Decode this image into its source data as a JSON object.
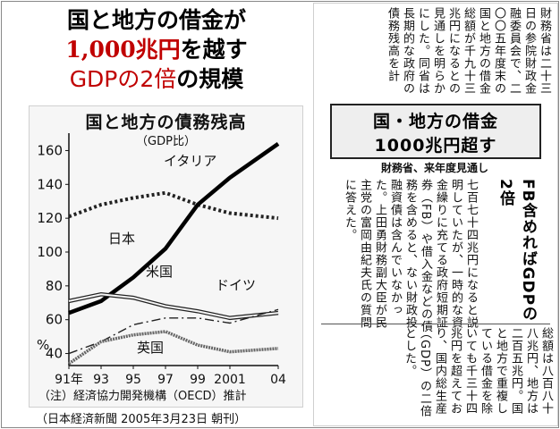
{
  "headline": {
    "line1": "国と地方の借金が",
    "line2_red": "1,000兆円",
    "line2_rest": "を越す",
    "line3_red": "GDPの2倍",
    "line3_rest": "の規模"
  },
  "chart_meta": {
    "title": "国と地方の債務残高",
    "subtitle": "（GDP比）",
    "note": "（注）経済協力開発機構（OECD）推計",
    "percent_mark": "%"
  },
  "source_caption": "（日本経済新聞 2005年3月23日 朝刊）",
  "chart_data": {
    "type": "line",
    "title": "国と地方の債務残高",
    "subtitle": "（GDP比）",
    "xlabel": "",
    "ylabel": "%",
    "x": [
      1991,
      1993,
      1995,
      1997,
      1999,
      2001,
      2004
    ],
    "x_tick_labels": [
      "91年",
      "93",
      "95",
      "97",
      "99",
      "2001",
      "04"
    ],
    "ylim": [
      35,
      165
    ],
    "y_ticks": [
      40,
      60,
      80,
      100,
      120,
      140,
      160
    ],
    "series": [
      {
        "name": "イタリア",
        "values": [
          121,
          128,
          132,
          135,
          128,
          123,
          120
        ]
      },
      {
        "name": "日本",
        "values": [
          64,
          71,
          85,
          102,
          128,
          144,
          164
        ]
      },
      {
        "name": "米国",
        "values": [
          71,
          75,
          73,
          68,
          65,
          61,
          64
        ]
      },
      {
        "name": "ドイツ",
        "values": [
          40,
          47,
          57,
          61,
          61,
          58,
          66
        ]
      },
      {
        "name": "英国",
        "values": [
          34,
          47,
          51,
          53,
          45,
          41,
          43
        ]
      }
    ],
    "colors": {
      "japan": "#000000",
      "italy": "#222222",
      "usa": "#222222",
      "germany": "#222222",
      "uk": "#444444"
    }
  },
  "article": {
    "top_text": "財務省は二十三日の参院財政金融委員会で、二〇〇五年度末の国と地方の借金総額が千九十三兆円になるとの見通しを明らかにした。同省は長期的な政府の債務残高を計",
    "headline1": "国・地方の借金",
    "headline2": "1000兆円超す",
    "subhead": "財務省、来年度見通し",
    "mid_text": "七百七十四兆円になると説明していたが、一時的な資金繰りに充てる政府短期証券（FB）や借入金などの債務を含めると、ない財政投融資債は含んでいなかった。上田勇財務副大臣が民主党の富岡由紀夫氏の質問に答えた。",
    "side_head": "FB含めればGDPの2倍",
    "bottom_text": "総額は八百八十八兆円、地方は二百五兆円。国と地方で重複している借金を除いても千三十四兆円を超えており、国内総生産（GDP）の二倍とした。"
  }
}
